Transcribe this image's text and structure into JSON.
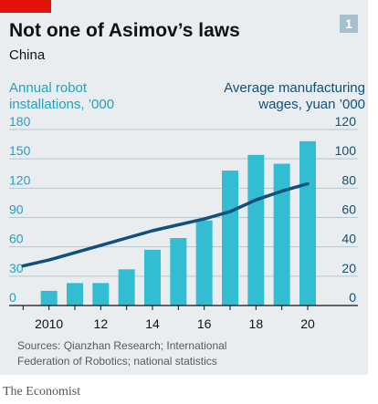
{
  "header": {
    "title": "Not one of Asimov’s laws",
    "subtitle": "China",
    "badge": "1"
  },
  "axis_titles": {
    "left": [
      "Annual robot",
      "installations, ’000"
    ],
    "right": [
      "Average manufacturing",
      "wages, yuan ’000"
    ]
  },
  "source_lines": [
    "Sources: Qianzhan Research; International",
    "Federation of Robotics; national statistics"
  ],
  "credit": "The Economist",
  "colors": {
    "bars": "#33bdd3",
    "line": "#10507a",
    "left_axis": "#1fa2c3",
    "right_axis": "#10507a",
    "brand_red": "#e3120b"
  },
  "chart_data": {
    "type": "bar",
    "x": [
      2009,
      2010,
      2011,
      2012,
      2013,
      2014,
      2015,
      2016,
      2017,
      2018,
      2019,
      2020
    ],
    "x_tick_values": [
      2010,
      2012,
      2014,
      2016,
      2018,
      2020
    ],
    "x_tick_labels": [
      "2010",
      "12",
      "14",
      "16",
      "18",
      "20"
    ],
    "xlim": [
      2008.6,
      2020.6
    ],
    "series": [
      {
        "name": "Annual robot installations, ’000",
        "type": "bar",
        "axis": "left",
        "x": [
          2010,
          2011,
          2012,
          2013,
          2014,
          2015,
          2016,
          2017,
          2018,
          2019,
          2020
        ],
        "values": [
          15,
          23,
          23,
          37,
          57,
          69,
          87,
          138,
          154,
          145,
          168
        ]
      },
      {
        "name": "Average manufacturing wages, yuan ’000",
        "type": "line",
        "axis": "right",
        "x": [
          2009,
          2010,
          2011,
          2012,
          2013,
          2014,
          2015,
          2016,
          2017,
          2018,
          2019,
          2020
        ],
        "values": [
          27,
          31,
          36,
          41,
          46,
          51,
          55,
          59,
          64,
          72,
          78,
          83
        ]
      }
    ],
    "y_left": {
      "ylim": [
        0,
        180
      ],
      "ticks": [
        0,
        30,
        60,
        90,
        120,
        150,
        180
      ]
    },
    "y_right": {
      "ylim": [
        0,
        120
      ],
      "ticks": [
        0,
        20,
        40,
        60,
        80,
        100,
        120
      ]
    },
    "grid": true
  }
}
